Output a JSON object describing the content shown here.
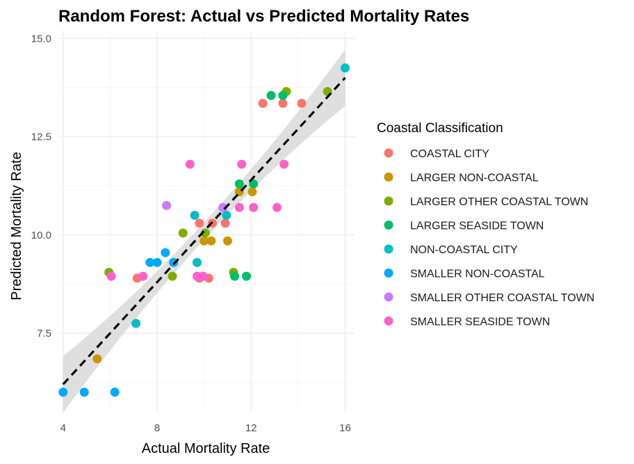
{
  "chart_data": {
    "type": "scatter",
    "title": "Random Forest: Actual vs Predicted Mortality Rates",
    "xlabel": "Actual Mortality Rate",
    "ylabel": "Predicted Mortality Rate",
    "xlim": [
      3.8,
      16.4
    ],
    "ylim": [
      5.5,
      15.2
    ],
    "xticks": [
      4,
      8,
      12,
      16
    ],
    "xtick_labels": [
      "4",
      "8",
      "12",
      "16"
    ],
    "yticks": [
      7.5,
      10.0,
      12.5,
      15.0
    ],
    "ytick_labels": [
      "7.5",
      "10.0",
      "12.5",
      "15.0"
    ],
    "grid": true,
    "legend": {
      "title": "Coastal Classification",
      "position": "right"
    },
    "trend_line": {
      "style": "dashed",
      "color": "#000000",
      "x": [
        4,
        16
      ],
      "y": [
        6.2,
        14.0
      ],
      "confidence_band_color": "#d9d9d9",
      "band_half_width_ends": 0.72,
      "band_half_width_center": 0.22
    },
    "series": [
      {
        "name": "COASTAL CITY",
        "color": "#F8766D",
        "points": [
          [
            12.5,
            13.35
          ],
          [
            13.35,
            13.35
          ],
          [
            14.15,
            13.35
          ],
          [
            9.8,
            10.3
          ],
          [
            10.35,
            10.3
          ],
          [
            10.9,
            10.3
          ],
          [
            7.15,
            8.9
          ],
          [
            9.8,
            8.9
          ],
          [
            10.2,
            8.9
          ]
        ]
      },
      {
        "name": "LARGER NON-COASTAL",
        "color": "#CD9600",
        "points": [
          [
            5.45,
            6.85
          ],
          [
            11.5,
            11.1
          ],
          [
            12.05,
            11.1
          ],
          [
            10.0,
            9.85
          ],
          [
            10.3,
            9.85
          ],
          [
            11.0,
            9.85
          ]
        ]
      },
      {
        "name": "LARGER OTHER COASTAL TOWN",
        "color": "#7CAE00",
        "points": [
          [
            13.5,
            13.65
          ],
          [
            15.25,
            13.65
          ],
          [
            9.1,
            10.05
          ],
          [
            10.05,
            10.05
          ],
          [
            5.95,
            9.05
          ],
          [
            8.65,
            8.95
          ],
          [
            11.25,
            9.05
          ]
        ]
      },
      {
        "name": "LARGER SEASIDE TOWN",
        "color": "#00BE67",
        "points": [
          [
            12.85,
            13.55
          ],
          [
            13.35,
            13.55
          ],
          [
            11.5,
            11.3
          ],
          [
            12.1,
            11.3
          ],
          [
            11.3,
            8.95
          ],
          [
            11.8,
            8.95
          ]
        ]
      },
      {
        "name": "NON-COASTAL CITY",
        "color": "#00BFC4",
        "points": [
          [
            16.0,
            14.25
          ],
          [
            9.6,
            10.5
          ],
          [
            10.95,
            10.5
          ],
          [
            9.7,
            9.3
          ],
          [
            7.1,
            7.75
          ]
        ]
      },
      {
        "name": "SMALLER NON-COASTAL",
        "color": "#00A9FF",
        "points": [
          [
            4.0,
            6.0
          ],
          [
            4.9,
            6.0
          ],
          [
            6.2,
            6.0
          ],
          [
            8.35,
            9.55
          ],
          [
            7.7,
            9.3
          ],
          [
            8.0,
            9.3
          ],
          [
            8.7,
            9.3
          ]
        ]
      },
      {
        "name": "SMALLER OTHER COASTAL TOWN",
        "color": "#C77CFF",
        "points": [
          [
            8.4,
            10.75
          ],
          [
            10.8,
            10.7
          ]
        ]
      },
      {
        "name": "SMALLER SEASIDE TOWN",
        "color": "#FF61CC",
        "points": [
          [
            9.4,
            11.8
          ],
          [
            11.6,
            11.8
          ],
          [
            13.4,
            11.8
          ],
          [
            11.5,
            10.7
          ],
          [
            12.1,
            10.7
          ],
          [
            13.1,
            10.7
          ],
          [
            6.05,
            8.95
          ],
          [
            7.4,
            8.95
          ],
          [
            9.7,
            8.95
          ],
          [
            9.95,
            8.95
          ]
        ]
      }
    ]
  }
}
